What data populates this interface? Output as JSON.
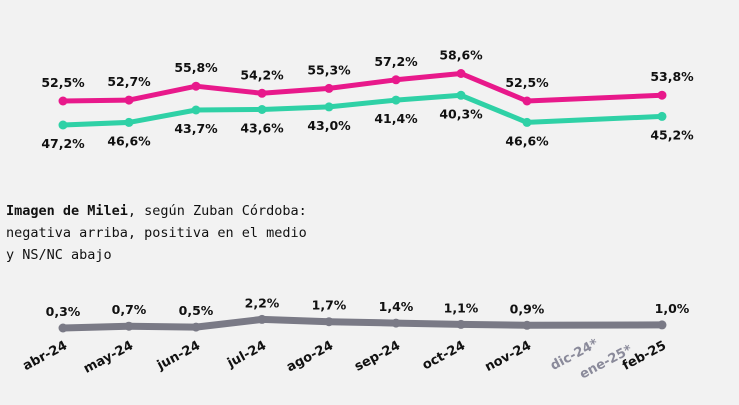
{
  "colors": {
    "negative": "#e8198b",
    "positive": "#2fd1a6",
    "nsnc": "#7a7a86",
    "text": "#111111",
    "background": "#f2f2f2",
    "dim_label": "#8a8a9a"
  },
  "caption": {
    "bold": "Imagen de Milei",
    "line1_rest": ", según Zuban Córdoba:",
    "line2": "negativa arriba, positiva en el medio",
    "line3": "y NS/NC abajo"
  },
  "chart_data": {
    "type": "line",
    "categories": [
      "abr-24",
      "may-24",
      "jun-24",
      "jul-24",
      "ago-24",
      "sep-24",
      "oct-24",
      "nov-24",
      "dic-24*",
      "ene-25*",
      "feb-25"
    ],
    "series": [
      {
        "key": "negative",
        "values": [
          52.5,
          52.7,
          55.8,
          54.2,
          55.3,
          57.2,
          58.6,
          52.5,
          null,
          null,
          53.8
        ],
        "labels": [
          "52,5%",
          "52,7%",
          "55,8%",
          "54,2%",
          "55,3%",
          "57,2%",
          "58,6%",
          "52,5%",
          "",
          "",
          "53,8%"
        ]
      },
      {
        "key": "positive",
        "values": [
          47.2,
          46.6,
          43.7,
          43.6,
          43.0,
          41.4,
          40.3,
          46.6,
          null,
          null,
          45.2
        ],
        "labels": [
          "47,2%",
          "46,6%",
          "43,7%",
          "43,6%",
          "43,0%",
          "41,4%",
          "40,3%",
          "46,6%",
          "",
          "",
          "45,2%"
        ]
      },
      {
        "key": "nsnc",
        "values": [
          0.3,
          0.7,
          0.5,
          2.2,
          1.7,
          1.4,
          1.1,
          0.9,
          null,
          null,
          1.0
        ],
        "labels": [
          "0,3%",
          "0,7%",
          "0,5%",
          "2,2%",
          "1,7%",
          "1,4%",
          "1,1%",
          "0,9%",
          "",
          "",
          "1,0%"
        ]
      }
    ]
  }
}
